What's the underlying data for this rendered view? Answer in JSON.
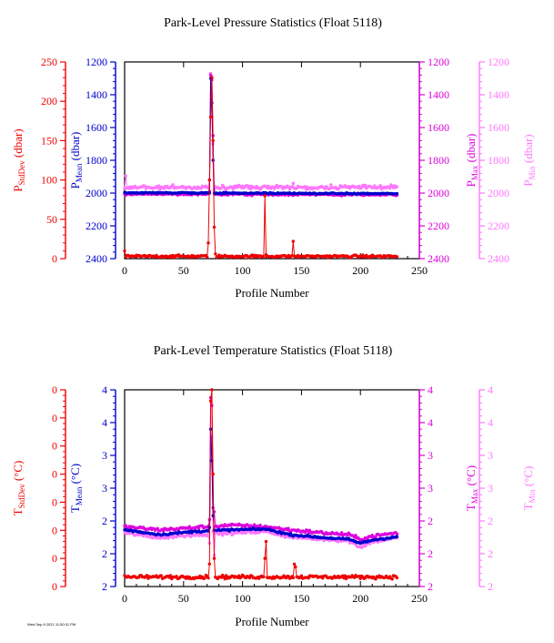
{
  "footer_text": "Wed Sep 8 2021 11:50:31 PM",
  "chart_data": [
    {
      "type": "scatter",
      "title": "Park-Level Pressure Statistics (Float 5118)",
      "xlabel": "Profile Number",
      "x_range": [
        0,
        250
      ],
      "x_ticks": [
        "0",
        "50",
        "100",
        "150",
        "200",
        "250"
      ],
      "grid": false,
      "axes": [
        {
          "id": "stddev",
          "side": "left",
          "label_main": "P",
          "label_sub": "StdDev",
          "label_unit": " (dbar)",
          "color": "#ee0000",
          "range": [
            0,
            250
          ],
          "inverted": false,
          "ticks": [
            "0",
            "50",
            "100",
            "150",
            "200",
            "250"
          ]
        },
        {
          "id": "mean",
          "side": "left",
          "label_main": "P",
          "label_sub": "Mean",
          "label_unit": " (dbar)",
          "color": "#0000cc",
          "range": [
            1200,
            2400
          ],
          "inverted": true,
          "ticks": [
            "1200",
            "1400",
            "1600",
            "1800",
            "2000",
            "2200",
            "2400"
          ]
        },
        {
          "id": "max",
          "side": "right",
          "label_main": "P",
          "label_sub": "Max",
          "label_unit": " (dbar)",
          "color": "#dd00dd",
          "range": [
            1200,
            2400
          ],
          "inverted": true,
          "ticks": [
            "1200",
            "1400",
            "1600",
            "1800",
            "2000",
            "2200",
            "2400"
          ]
        },
        {
          "id": "min",
          "side": "right",
          "label_main": "P",
          "label_sub": "Min",
          "label_unit": " (dbar)",
          "color": "#ff77ff",
          "range": [
            1200,
            2400
          ],
          "inverted": true,
          "ticks": [
            "1200",
            "1400",
            "1600",
            "1800",
            "2000",
            "2200",
            "2400"
          ]
        }
      ],
      "series": [
        {
          "axis": "min",
          "color": "#ff77ff",
          "n": 232,
          "base": 1975,
          "noise": 12,
          "segments": [
            [
              0,
              1965
            ],
            [
              230,
              1965
            ]
          ],
          "spikes": [
            [
              1,
              1895
            ],
            [
              72,
              1920
            ],
            [
              73,
              1270
            ],
            [
              74,
              1290
            ],
            [
              75,
              1700
            ],
            [
              76,
              1980
            ],
            [
              120,
              1960
            ],
            [
              143,
              1940
            ]
          ]
        },
        {
          "axis": "max",
          "color": "#dd00dd",
          "n": 232,
          "base": 2010,
          "noise": 6,
          "segments": [
            [
              0,
              2005
            ],
            [
              230,
              2010
            ]
          ],
          "spikes": [
            [
              72,
              1990
            ],
            [
              73,
              1280
            ],
            [
              74,
              1310
            ],
            [
              75,
              1650
            ],
            [
              76,
              2000
            ]
          ]
        },
        {
          "axis": "mean",
          "color": "#0000cc",
          "n": 232,
          "base": 2000,
          "noise": 4,
          "segments": [
            [
              0,
              1998
            ],
            [
              230,
              2003
            ]
          ],
          "spikes": [
            [
              72,
              2000
            ],
            [
              73,
              1300
            ],
            [
              74,
              1450
            ],
            [
              75,
              1800
            ]
          ]
        },
        {
          "axis": "stddev",
          "color": "#ee0000",
          "n": 232,
          "base": 3,
          "noise": 1.5,
          "segments": [
            [
              0,
              3
            ],
            [
              230,
              3
            ]
          ],
          "spikes": [
            [
              0,
              10
            ],
            [
              71,
              20
            ],
            [
              72,
              100
            ],
            [
              73,
              180
            ],
            [
              74,
              230
            ],
            [
              75,
              150
            ],
            [
              76,
              40
            ],
            [
              77,
              6
            ],
            [
              119,
              80
            ],
            [
              120,
              5
            ],
            [
              143,
              22
            ]
          ]
        }
      ]
    },
    {
      "type": "scatter",
      "title": "Park-Level Temperature Statistics (Float 5118)",
      "xlabel": "Profile Number",
      "x_range": [
        0,
        250
      ],
      "x_ticks": [
        "0",
        "50",
        "100",
        "150",
        "200",
        "250"
      ],
      "grid": false,
      "axes": [
        {
          "id": "stddev",
          "side": "left",
          "label_main": "T",
          "label_sub": "StdDev",
          "label_unit": " (°C)",
          "color": "#ee0000",
          "range": [
            0,
            0.35
          ],
          "inverted": false,
          "ticks": [
            "0",
            "0",
            "0",
            "0",
            "0",
            "0",
            "0",
            "0"
          ]
        },
        {
          "id": "mean",
          "side": "left",
          "label_main": "T",
          "label_sub": "Mean",
          "label_unit": " (°C)",
          "color": "#0000cc",
          "range": [
            2,
            4.5
          ],
          "inverted": false,
          "ticks": [
            "2",
            "2",
            "2",
            "3",
            "3",
            "4",
            "4"
          ]
        },
        {
          "id": "max",
          "side": "right",
          "label_main": "T",
          "label_sub": "Max",
          "label_unit": " (°C)",
          "color": "#dd00dd",
          "range": [
            2,
            4.5
          ],
          "inverted": false,
          "ticks": [
            "2",
            "2",
            "2",
            "3",
            "3",
            "4",
            "4"
          ]
        },
        {
          "id": "min",
          "side": "right",
          "label_main": "T",
          "label_sub": "Min",
          "label_unit": " (°C)",
          "color": "#ff77ff",
          "range": [
            2,
            4.5
          ],
          "inverted": false,
          "ticks": [
            "2",
            "2",
            "2",
            "3",
            "3",
            "4",
            "4"
          ]
        }
      ],
      "series": [
        {
          "axis": "min",
          "color": "#ff77ff",
          "n": 232,
          "base": 0,
          "noise": 0.02,
          "segments": [
            [
              0,
              2.68
            ],
            [
              30,
              2.62
            ],
            [
              60,
              2.66
            ],
            [
              90,
              2.68
            ],
            [
              120,
              2.7
            ],
            [
              140,
              2.63
            ],
            [
              170,
              2.6
            ],
            [
              190,
              2.58
            ],
            [
              200,
              2.5
            ],
            [
              210,
              2.57
            ],
            [
              230,
              2.62
            ]
          ],
          "spikes": [
            [
              72,
              2.55
            ],
            [
              73,
              3.6
            ],
            [
              74,
              3.9
            ],
            [
              75,
              2.7
            ],
            [
              76,
              2.4
            ]
          ]
        },
        {
          "axis": "max",
          "color": "#dd00dd",
          "n": 232,
          "base": 0,
          "noise": 0.02,
          "segments": [
            [
              0,
              2.76
            ],
            [
              30,
              2.72
            ],
            [
              60,
              2.75
            ],
            [
              90,
              2.78
            ],
            [
              120,
              2.76
            ],
            [
              140,
              2.72
            ],
            [
              170,
              2.68
            ],
            [
              190,
              2.66
            ],
            [
              200,
              2.6
            ],
            [
              210,
              2.64
            ],
            [
              230,
              2.68
            ]
          ],
          "spikes": [
            [
              72,
              2.85
            ],
            [
              73,
              4.4
            ],
            [
              74,
              4.3
            ],
            [
              75,
              3.0
            ],
            [
              76,
              2.95
            ]
          ]
        },
        {
          "axis": "mean",
          "color": "#0000cc",
          "n": 232,
          "base": 0,
          "noise": 0.012,
          "segments": [
            [
              0,
              2.72
            ],
            [
              30,
              2.66
            ],
            [
              60,
              2.7
            ],
            [
              90,
              2.72
            ],
            [
              120,
              2.73
            ],
            [
              140,
              2.66
            ],
            [
              170,
              2.62
            ],
            [
              190,
              2.6
            ],
            [
              200,
              2.55
            ],
            [
              210,
              2.59
            ],
            [
              230,
              2.63
            ]
          ],
          "spikes": [
            [
              72,
              2.75
            ],
            [
              73,
              4.0
            ],
            [
              74,
              3.6
            ],
            [
              75,
              2.9
            ]
          ]
        },
        {
          "axis": "stddev",
          "color": "#ee0000",
          "n": 232,
          "base": 0.017,
          "noise": 0.003,
          "segments": [
            [
              0,
              0.017
            ],
            [
              230,
              0.017
            ]
          ],
          "spikes": [
            [
              72,
              0.04
            ],
            [
              73,
              0.33
            ],
            [
              74,
              0.35
            ],
            [
              75,
              0.2
            ],
            [
              76,
              0.05
            ],
            [
              119,
              0.05
            ],
            [
              120,
              0.08
            ],
            [
              144,
              0.04
            ],
            [
              145,
              0.035
            ]
          ]
        }
      ]
    }
  ]
}
